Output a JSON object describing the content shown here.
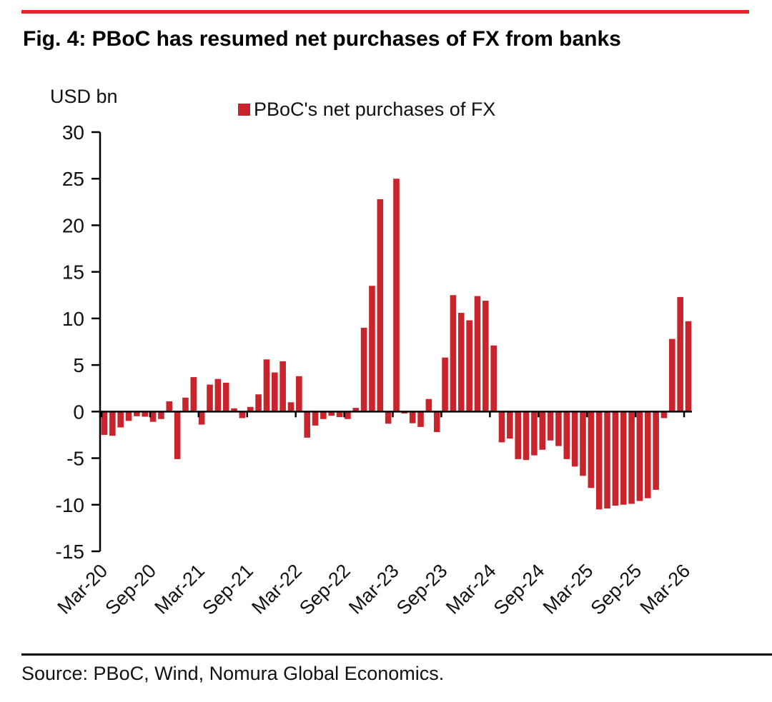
{
  "figure": {
    "title": "Fig. 4: PBoC has resumed net purchases of FX from banks",
    "source": "Source: PBoC, Wind, Nomura Global Economics."
  },
  "chart_data": {
    "type": "bar",
    "title": "Fig. 4: PBoC has resumed net purchases of FX from banks",
    "unit_label": "USD bn",
    "legend": "PBoC's net purchases of FX",
    "source": "Source: PBoC, Wind, Nomura Global Economics.",
    "bar_color": "#c9242b",
    "accent_red": "#e8242a",
    "axis_color": "#000000",
    "ylim": [
      -15,
      30
    ],
    "ytick_step": 5,
    "yticks": [
      30,
      25,
      20,
      15,
      10,
      5,
      0,
      -5,
      -10,
      -15
    ],
    "xtick_labels": [
      "Mar-20",
      "Sep-20",
      "Mar-21",
      "Sep-21",
      "Mar-22",
      "Sep-22",
      "Mar-23",
      "Sep-23",
      "Mar-24",
      "Sep-24",
      "Mar-25",
      "Sep-25",
      "Mar-26"
    ],
    "grid": false,
    "legend_position": "top",
    "months": [
      "Mar-20",
      "Apr-20",
      "May-20",
      "Jun-20",
      "Jul-20",
      "Aug-20",
      "Sep-20",
      "Oct-20",
      "Nov-20",
      "Dec-20",
      "Jan-21",
      "Feb-21",
      "Mar-21",
      "Apr-21",
      "May-21",
      "Jun-21",
      "Jul-21",
      "Aug-21",
      "Sep-21",
      "Oct-21",
      "Nov-21",
      "Dec-21",
      "Jan-22",
      "Feb-22",
      "Mar-22",
      "Apr-22",
      "May-22",
      "Jun-22",
      "Jul-22",
      "Aug-22",
      "Sep-22",
      "Oct-22",
      "Nov-22",
      "Dec-22",
      "Jan-23",
      "Feb-23",
      "Mar-23",
      "Apr-23",
      "May-23",
      "Jun-23",
      "Jul-23",
      "Aug-23",
      "Sep-23",
      "Oct-23",
      "Nov-23",
      "Dec-23",
      "Jan-24",
      "Feb-24",
      "Mar-24",
      "Apr-24",
      "May-24",
      "Jun-24",
      "Jul-24",
      "Aug-24",
      "Sep-24",
      "Oct-24",
      "Nov-24",
      "Dec-24",
      "Jan-25",
      "Feb-25",
      "Mar-25",
      "Apr-25",
      "May-25",
      "Jun-25",
      "Jul-25",
      "Aug-25",
      "Sep-25",
      "Oct-25",
      "Nov-25",
      "Dec-25",
      "Jan-26",
      "Feb-26",
      "Mar-26"
    ],
    "values": [
      -2.5,
      -2.6,
      -1.7,
      -1.0,
      -0.5,
      -0.55,
      -1.1,
      -0.8,
      1.1,
      -5.1,
      1.5,
      3.7,
      -1.4,
      2.9,
      3.5,
      3.1,
      0.35,
      -0.7,
      0.5,
      1.85,
      5.6,
      4.2,
      5.4,
      1.0,
      3.8,
      -2.8,
      -1.5,
      -0.8,
      -0.45,
      -0.6,
      -0.8,
      0.4,
      9.0,
      13.5,
      22.8,
      -1.3,
      25.0,
      -0.2,
      -1.25,
      -1.65,
      1.35,
      -2.2,
      5.8,
      12.5,
      10.6,
      9.8,
      12.4,
      11.9,
      7.1,
      -3.3,
      -2.9,
      -5.1,
      -5.2,
      -4.7,
      -4.1,
      -3.1,
      -3.7,
      -5.1,
      -5.9,
      -6.9,
      -8.2,
      -10.5,
      -10.4,
      -10.1,
      -10.0,
      -9.9,
      -9.6,
      -9.3,
      -8.4,
      -0.7,
      7.8,
      12.3,
      9.7
    ]
  }
}
